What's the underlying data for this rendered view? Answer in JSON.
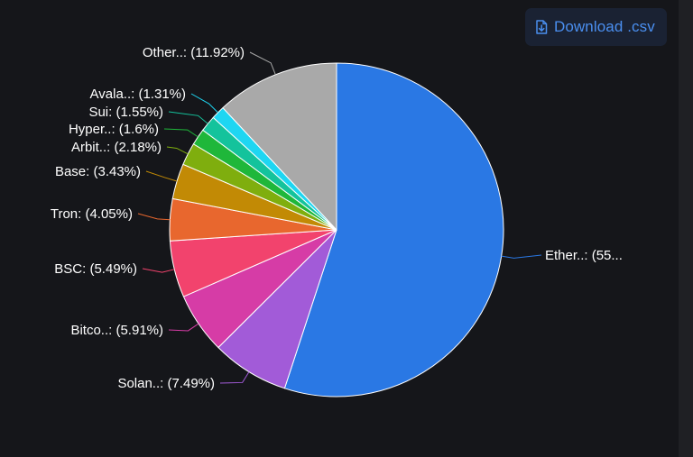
{
  "download": {
    "label": "Download .csv",
    "icon": "file-download-icon",
    "color": "#4a8ff0"
  },
  "chart_data": {
    "type": "pie",
    "title": "",
    "legend": "none",
    "slices": [
      {
        "label": "Ether..: (55...",
        "category": "Ether..",
        "value": 55.0,
        "color": "#2a78e4"
      },
      {
        "label": "Solan..: (7.49%)",
        "category": "Solan..",
        "value": 7.49,
        "color": "#a25bd8"
      },
      {
        "label": "Bitco..: (5.91%)",
        "category": "Bitco..",
        "value": 5.91,
        "color": "#d63ca6"
      },
      {
        "label": "BSC: (5.49%)",
        "category": "BSC",
        "value": 5.49,
        "color": "#f2436d"
      },
      {
        "label": "Tron: (4.05%)",
        "category": "Tron",
        "value": 4.05,
        "color": "#e8672e"
      },
      {
        "label": "Base: (3.43%)",
        "category": "Base",
        "value": 3.43,
        "color": "#c28a05"
      },
      {
        "label": "Arbit..: (2.18%)",
        "category": "Arbit..",
        "value": 2.18,
        "color": "#7fae0e"
      },
      {
        "label": "Hyper..: (1.6%)",
        "category": "Hyper..",
        "value": 1.6,
        "color": "#1fb73a"
      },
      {
        "label": "Sui: (1.55%)",
        "category": "Sui",
        "value": 1.55,
        "color": "#14c39c"
      },
      {
        "label": "Avala..: (1.31%)",
        "category": "Avala..",
        "value": 1.31,
        "color": "#1ed6f2"
      },
      {
        "label": "Other..: (11.92%)",
        "category": "Other..",
        "value": 11.92,
        "color": "#a9a9a9"
      }
    ]
  }
}
